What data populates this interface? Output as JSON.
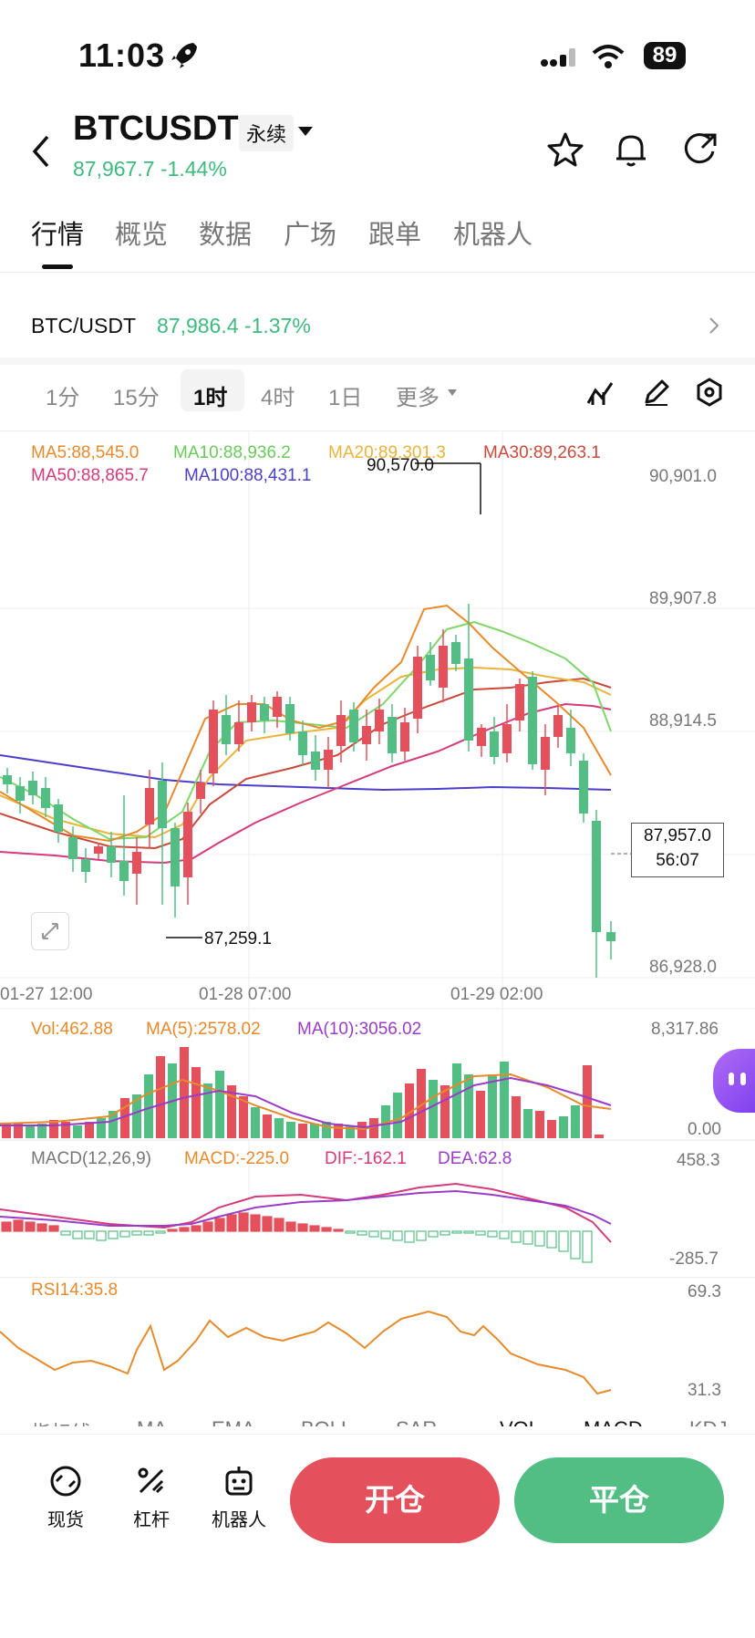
{
  "status": {
    "time": "11:03",
    "battery": "89"
  },
  "header": {
    "pair": "BTCUSDT",
    "contract_type": "永续",
    "price": "87,967.7",
    "change": "-1.44%"
  },
  "tabs": [
    "行情",
    "概览",
    "数据",
    "广场",
    "跟单",
    "机器人"
  ],
  "ticker": {
    "symbol": "BTC/USDT",
    "price": "87,986.4",
    "change": "-1.37%"
  },
  "intervals": {
    "i1": "1分",
    "i2": "15分",
    "i3": "1时",
    "i4": "4时",
    "i5": "1日",
    "more": "更多"
  },
  "ma_legend": {
    "ma5": "MA5:88,545.0",
    "ma10": "MA10:88,936.2",
    "ma20": "MA20:89,301.3",
    "ma30": "MA30:89,263.1",
    "ma50": "MA50:88,865.7",
    "ma100": "MA100:88,431.1"
  },
  "price_axis": {
    "p1": "90,901.0",
    "p2": "89,907.8",
    "p3": "88,914.5",
    "p4": "86,928.0"
  },
  "annotations": {
    "high": "90,570.0",
    "low": "87,259.1"
  },
  "current_price": {
    "price": "87,957.0",
    "countdown": "56:07"
  },
  "time_axis": {
    "t1": "01-27 12:00",
    "t2": "01-28 07:00",
    "t3": "01-29 02:00"
  },
  "volume": {
    "vol": "Vol:462.88",
    "ma5": "MA(5):2578.02",
    "ma10": "MA(10):3056.02",
    "max": "8,317.86",
    "min": "0.00"
  },
  "macd": {
    "label": "MACD(12,26,9)",
    "macd": "MACD:-225.0",
    "dif": "DIF:-162.1",
    "dea": "DEA:62.8",
    "max": "458.3",
    "min": "-285.7"
  },
  "rsi": {
    "label": "RSI14:35.8",
    "max": "69.3",
    "min": "31.3"
  },
  "indicator_tabs": [
    "指标线",
    "MA",
    "EMA",
    "BOLL",
    "SAR",
    "VOL",
    "MACD",
    "KDJ"
  ],
  "bottom_nav": {
    "spot": "现货",
    "leverage": "杠杆",
    "bot": "机器人",
    "open": "开仓",
    "close": "平仓"
  },
  "colors": {
    "up": "#53be84",
    "down": "#e4505b"
  }
}
